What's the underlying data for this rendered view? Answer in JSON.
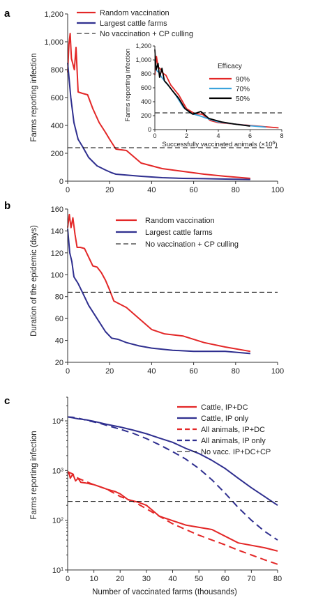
{
  "colors": {
    "red": "#e32727",
    "blue": "#2f2f8f",
    "cyan": "#3ba3dc",
    "black": "#000000"
  },
  "chart_data": [
    {
      "panel": "a",
      "type": "line",
      "xlabel": "",
      "ylabel": "Farms reporting infection",
      "xlim": [
        0,
        100
      ],
      "ylim": [
        0,
        1200
      ],
      "xticks": [
        0,
        20,
        40,
        60,
        80,
        100
      ],
      "yticks": [
        0,
        200,
        400,
        600,
        800,
        1000,
        1200
      ],
      "ytick_labels": [
        "0",
        "200",
        "400",
        "600",
        "800",
        "1,000",
        "1,200"
      ],
      "legend_position": "top-left",
      "series": [
        {
          "name": "Random vaccination",
          "color": "red",
          "dash": "solid",
          "x": [
            0,
            0.6,
            1.2,
            1.8,
            2.5,
            3.2,
            4,
            5,
            7,
            9.5,
            12,
            15,
            18,
            20,
            23,
            28,
            35,
            45,
            55,
            65,
            75,
            87
          ],
          "y": [
            780,
            980,
            1060,
            880,
            840,
            800,
            960,
            640,
            630,
            620,
            520,
            420,
            350,
            300,
            230,
            220,
            130,
            90,
            70,
            50,
            35,
            20
          ]
        },
        {
          "name": "Largest cattle farms",
          "color": "blue",
          "dash": "solid",
          "x": [
            0,
            1.5,
            3,
            5,
            7,
            10,
            14,
            18,
            21,
            23,
            27,
            35,
            45,
            55,
            65,
            75,
            87
          ],
          "y": [
            850,
            600,
            420,
            300,
            250,
            170,
            110,
            80,
            60,
            50,
            45,
            35,
            25,
            20,
            18,
            15,
            12
          ]
        },
        {
          "name": "No vaccination + CP culling",
          "color": "black",
          "dash": "dashed",
          "x": [
            0,
            100
          ],
          "y": [
            240,
            240
          ]
        }
      ],
      "inset": {
        "type": "line",
        "xlabel": "Successfully vaccinated animals (×10",
        "xlabel_sup": "6",
        "xlabel_end": ")",
        "ylabel": "Farms reporting infection",
        "xlim": [
          0,
          8
        ],
        "ylim": [
          0,
          1200
        ],
        "xticks": [
          0,
          2,
          4,
          6,
          8
        ],
        "yticks": [
          0,
          200,
          400,
          600,
          800,
          1000,
          1200
        ],
        "ytick_labels": [
          "0",
          "200",
          "400",
          "600",
          "800",
          "1,000",
          "1,200"
        ],
        "legend_title": "Efficacy",
        "legend_position": "top-right",
        "series": [
          {
            "name": "90%",
            "color": "red",
            "x": [
              0,
              0.1,
              0.2,
              0.35,
              0.5,
              0.7,
              1.0,
              1.5,
              2.0,
              2.5,
              3.0,
              3.5,
              4.0,
              5.0,
              6.0,
              7.0,
              7.8
            ],
            "y": [
              780,
              1050,
              900,
              870,
              810,
              780,
              640,
              500,
              300,
              230,
              220,
              130,
              100,
              80,
              60,
              40,
              25
            ]
          },
          {
            "name": "70%",
            "color": "cyan",
            "x": [
              0,
              0.1,
              0.25,
              0.4,
              0.6,
              0.9,
              1.3,
              1.8,
              2.3,
              2.8,
              3.3,
              4.0,
              5.0,
              6.0,
              7.0
            ],
            "y": [
              1000,
              850,
              820,
              760,
              700,
              620,
              500,
              320,
              230,
              200,
              160,
              110,
              80,
              55,
              35
            ]
          },
          {
            "name": "50%",
            "color": "black",
            "x": [
              0,
              0.08,
              0.2,
              0.3,
              0.45,
              0.6,
              0.8,
              1.1,
              1.5,
              1.9,
              2.4,
              2.9,
              3.4,
              4.2,
              5.0,
              6.0
            ],
            "y": [
              1150,
              860,
              950,
              750,
              880,
              700,
              650,
              560,
              450,
              300,
              220,
              260,
              160,
              110,
              80,
              50
            ]
          },
          {
            "name": "",
            "color": "black",
            "dash": "dashed",
            "x": [
              0,
              8
            ],
            "y": [
              240,
              240
            ]
          }
        ]
      }
    },
    {
      "panel": "b",
      "type": "line",
      "xlabel": "",
      "ylabel": "Duration of the epidemic (days)",
      "xlim": [
        0,
        100
      ],
      "ylim": [
        20,
        160
      ],
      "xticks": [
        0,
        20,
        40,
        60,
        80,
        100
      ],
      "yticks": [
        20,
        40,
        60,
        80,
        100,
        120,
        140,
        160
      ],
      "legend_position": "top-right",
      "series": [
        {
          "name": "Random vaccination",
          "color": "red",
          "dash": "solid",
          "x": [
            0,
            0.8,
            1.6,
            2.5,
            3.5,
            4.5,
            6,
            8,
            10,
            12,
            14,
            16,
            18,
            20,
            22,
            24,
            28,
            34,
            40,
            46,
            55,
            65,
            75,
            87
          ],
          "y": [
            143,
            155,
            143,
            152,
            137,
            125,
            125,
            124,
            116,
            108,
            107,
            102,
            95,
            86,
            76,
            74,
            70,
            60,
            50,
            46,
            44,
            38,
            34,
            30
          ]
        },
        {
          "name": "Largest cattle farms",
          "color": "blue",
          "dash": "solid",
          "x": [
            0,
            1,
            2,
            3,
            5,
            7,
            10,
            14,
            18,
            21,
            24,
            28,
            34,
            40,
            50,
            60,
            66,
            75,
            87
          ],
          "y": [
            142,
            120,
            112,
            98,
            92,
            84,
            72,
            60,
            48,
            42,
            41,
            38,
            35,
            33,
            31,
            30,
            30,
            30,
            28
          ]
        },
        {
          "name": "No vaccination + CP culling",
          "color": "black",
          "dash": "dashed",
          "x": [
            0,
            100
          ],
          "y": [
            84,
            84
          ]
        }
      ]
    },
    {
      "panel": "c",
      "type": "line",
      "xlabel": "Number of vaccinated farms (thousands)",
      "ylabel": "Farms reporting infection",
      "yscale": "log",
      "xlim": [
        0,
        80
      ],
      "ylim": [
        10,
        30000
      ],
      "xticks": [
        0,
        10,
        20,
        30,
        40,
        50,
        60,
        70,
        80
      ],
      "yticks": [
        10,
        100,
        1000,
        10000
      ],
      "ytick_labels": [
        "10",
        "10",
        "10",
        "10"
      ],
      "ytick_exps": [
        "1",
        "2",
        "3",
        "4"
      ],
      "legend_position": "top-right",
      "series": [
        {
          "name": "Cattle, IP+DC",
          "color": "red",
          "dash": "solid",
          "x": [
            0,
            0.5,
            1,
            2,
            3,
            4,
            5,
            7,
            10,
            13,
            15,
            18,
            20,
            23,
            27,
            30,
            35,
            45,
            55,
            65,
            75,
            80
          ],
          "y": [
            850,
            900,
            700,
            850,
            620,
            700,
            580,
            560,
            520,
            460,
            420,
            380,
            340,
            260,
            230,
            200,
            120,
            80,
            65,
            35,
            28,
            24
          ]
        },
        {
          "name": "Cattle, IP only",
          "color": "blue",
          "dash": "solid",
          "x": [
            0,
            2,
            4,
            7,
            10,
            15,
            20,
            25,
            30,
            35,
            40,
            45,
            50,
            55,
            60,
            65,
            70,
            75,
            80
          ],
          "y": [
            12000,
            11500,
            11000,
            10500,
            9800,
            8500,
            7500,
            6500,
            5500,
            4500,
            3700,
            2800,
            2200,
            1600,
            1100,
            700,
            450,
            300,
            200
          ]
        },
        {
          "name": "All animals, IP+DC",
          "color": "red",
          "dash": "dashed",
          "x": [
            0,
            2,
            4,
            7,
            10,
            15,
            20,
            25,
            30,
            35,
            40,
            45,
            50,
            55,
            60,
            65,
            70,
            75,
            80
          ],
          "y": [
            950,
            850,
            700,
            600,
            520,
            420,
            300,
            240,
            170,
            120,
            85,
            65,
            50,
            40,
            32,
            25,
            20,
            16,
            13
          ]
        },
        {
          "name": "All animals, IP only",
          "color": "blue",
          "dash": "dashed",
          "x": [
            0,
            2,
            5,
            8,
            12,
            16,
            20,
            25,
            30,
            35,
            40,
            45,
            50,
            55,
            60,
            65,
            70,
            75,
            80
          ],
          "y": [
            12000,
            11800,
            11000,
            10000,
            9000,
            7800,
            6800,
            5600,
            4400,
            3300,
            2400,
            1700,
            1100,
            650,
            350,
            180,
            100,
            60,
            40
          ]
        },
        {
          "name": "No vacc. IP+DC+CP",
          "color": "black",
          "dash": "dashed",
          "x": [
            0,
            80
          ],
          "y": [
            240,
            240
          ]
        }
      ]
    }
  ]
}
